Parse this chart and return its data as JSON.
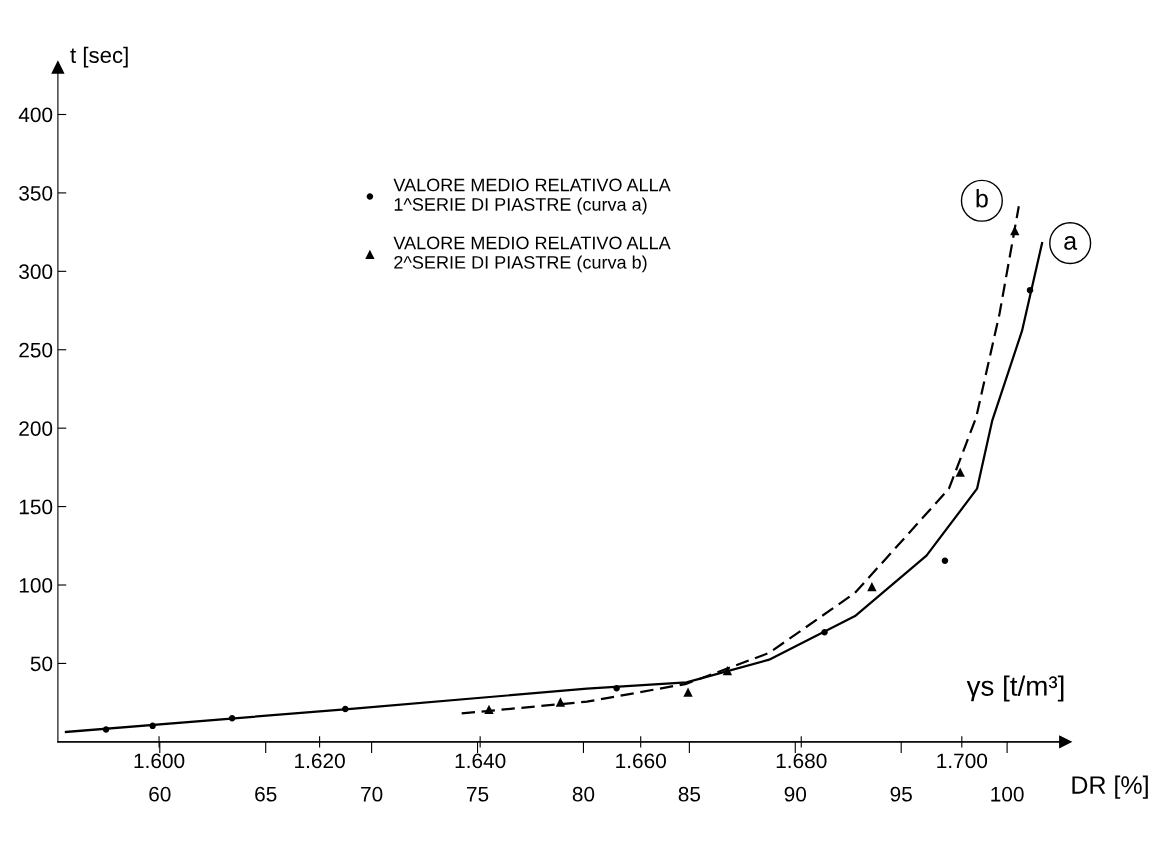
{
  "chart_data": {
    "type": "scatter",
    "xlabel": "γs [t/m³]",
    "ylabel": "t [sec]",
    "x2label": "DR [%]",
    "xlim": [
      1.5874,
      1.7129
    ],
    "xticks": [
      {
        "value": 1.6,
        "label": "1.600"
      },
      {
        "value": 1.62,
        "label": "1.620"
      },
      {
        "value": 1.64,
        "label": "1.640"
      },
      {
        "value": 1.66,
        "label": "1.660"
      },
      {
        "value": 1.68,
        "label": "1.680"
      },
      {
        "value": 1.7,
        "label": "1.700"
      }
    ],
    "x2lim": [
      55.19,
      102.75
    ],
    "x2ticks": [
      60,
      65,
      70,
      75,
      80,
      85,
      90,
      95,
      100
    ],
    "ylim": [
      0,
      430
    ],
    "yticks": [
      50,
      100,
      150,
      200,
      250,
      300,
      350,
      400
    ],
    "grid": false,
    "legend": "top",
    "series": [
      {
        "name": "VALORE MEDIO RELATIVO ALLA\n1^SERIE DI PIASTRE (curva a)",
        "marker": "circle",
        "color": "#000000",
        "x": [
          1.5934,
          1.5992,
          1.6091,
          1.6232,
          1.657,
          1.6829,
          1.6979,
          1.7085
        ],
        "values": [
          7.9,
          10.2,
          15.0,
          20.9,
          34.2,
          69.9,
          115.5,
          288
        ]
      },
      {
        "name": "VALORE MEDIO RELATIVO ALLA\n2^SERIE DI PIASTRE (curva b)",
        "marker": "triangle",
        "color": "#000000",
        "x": [
          1.6411,
          1.65,
          1.6659,
          1.6708,
          1.6888,
          1.6998,
          1.7066
        ],
        "values": [
          20.7,
          25.4,
          31.7,
          45.4,
          99.0,
          172,
          326
        ]
      },
      {
        "type": "line",
        "line_style": "solid",
        "color": "#000000",
        "x": [
          1.5884,
          1.6243,
          1.6533,
          1.6657,
          1.676,
          1.6867,
          1.6956,
          1.7019,
          1.7038,
          1.7075,
          1.71
        ],
        "values": [
          6.3,
          21.2,
          33.9,
          37.9,
          52.4,
          80.2,
          118.7,
          161.4,
          205,
          262,
          318
        ]
      },
      {
        "type": "line",
        "line_style": "dashed",
        "color": "#000000",
        "x": [
          1.6377,
          1.6533,
          1.6657,
          1.676,
          1.6867,
          1.6984,
          1.7018,
          1.7047,
          1.7071
        ],
        "values": [
          18.1,
          25.6,
          37,
          56.7,
          95,
          161.4,
          207,
          273,
          341.5
        ]
      }
    ],
    "annotations": [
      {
        "text": "a",
        "x": 1.7135,
        "y": 318
      },
      {
        "text": "b",
        "x": 1.7025,
        "y": 345
      }
    ]
  }
}
